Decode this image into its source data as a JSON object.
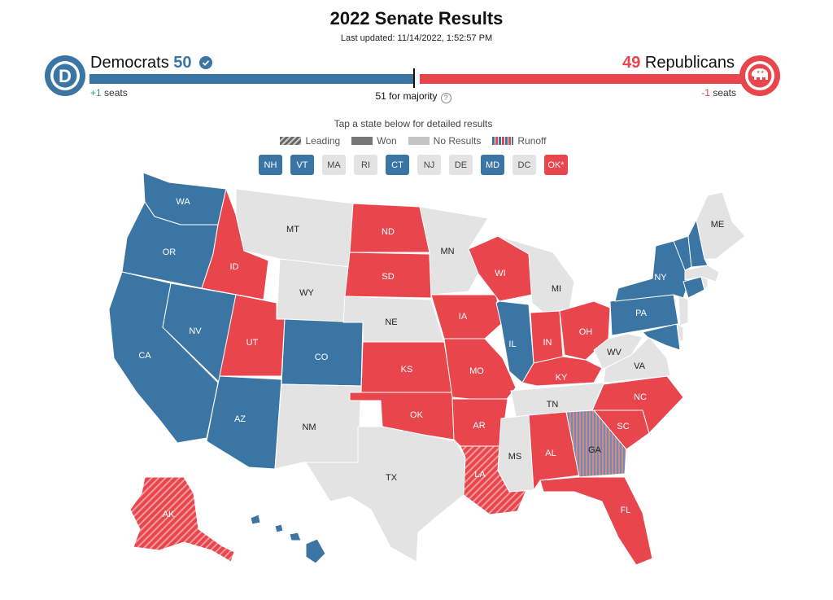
{
  "header": {
    "title": "2022 Senate Results",
    "updated": "Last updated: 11/14/2022, 1:52:57 PM"
  },
  "dem": {
    "name": "Democrats",
    "seats": "50",
    "change_delta": "+1",
    "change_unit": "seats",
    "logo_letter": "D"
  },
  "rep": {
    "name": "Republicans",
    "seats": "49",
    "change_delta": "-1",
    "change_unit": "seats"
  },
  "majority": {
    "label": "51 for majority",
    "help": "?"
  },
  "tap_hint": "Tap a state below for detailed results",
  "legend": {
    "leading": "Leading",
    "won": "Won",
    "no_results": "No Results",
    "runoff": "Runoff"
  },
  "colors": {
    "dem": "#3a75a3",
    "rep": "#e8454c",
    "rep_light": "#ec6e72",
    "none": "#e3e3e3",
    "runoff_blue": "#6c8fb0"
  },
  "chips": [
    {
      "label": "NH",
      "party": "dem"
    },
    {
      "label": "VT",
      "party": "dem"
    },
    {
      "label": "MA",
      "party": "none"
    },
    {
      "label": "RI",
      "party": "none"
    },
    {
      "label": "CT",
      "party": "dem"
    },
    {
      "label": "NJ",
      "party": "none"
    },
    {
      "label": "DE",
      "party": "none"
    },
    {
      "label": "MD",
      "party": "dem"
    },
    {
      "label": "DC",
      "party": "none"
    },
    {
      "label": "OK*",
      "party": "rep"
    }
  ],
  "states": [
    {
      "abbr": "WA",
      "party": "dem"
    },
    {
      "abbr": "OR",
      "party": "dem"
    },
    {
      "abbr": "CA",
      "party": "dem"
    },
    {
      "abbr": "NV",
      "party": "dem"
    },
    {
      "abbr": "ID",
      "party": "rep"
    },
    {
      "abbr": "MT",
      "party": "none"
    },
    {
      "abbr": "WY",
      "party": "none"
    },
    {
      "abbr": "UT",
      "party": "rep"
    },
    {
      "abbr": "AZ",
      "party": "dem"
    },
    {
      "abbr": "CO",
      "party": "dem"
    },
    {
      "abbr": "NM",
      "party": "none"
    },
    {
      "abbr": "ND",
      "party": "rep"
    },
    {
      "abbr": "SD",
      "party": "rep"
    },
    {
      "abbr": "NE",
      "party": "none"
    },
    {
      "abbr": "KS",
      "party": "rep"
    },
    {
      "abbr": "OK",
      "party": "rep"
    },
    {
      "abbr": "TX",
      "party": "none"
    },
    {
      "abbr": "MN",
      "party": "none"
    },
    {
      "abbr": "IA",
      "party": "rep"
    },
    {
      "abbr": "MO",
      "party": "rep"
    },
    {
      "abbr": "AR",
      "party": "rep"
    },
    {
      "abbr": "LA",
      "party": "rep-leading"
    },
    {
      "abbr": "WI",
      "party": "rep"
    },
    {
      "abbr": "IL",
      "party": "dem"
    },
    {
      "abbr": "MI",
      "party": "none"
    },
    {
      "abbr": "IN",
      "party": "rep"
    },
    {
      "abbr": "OH",
      "party": "rep"
    },
    {
      "abbr": "KY",
      "party": "rep"
    },
    {
      "abbr": "TN",
      "party": "none"
    },
    {
      "abbr": "MS",
      "party": "none"
    },
    {
      "abbr": "AL",
      "party": "rep"
    },
    {
      "abbr": "GA",
      "party": "runoff"
    },
    {
      "abbr": "FL",
      "party": "rep"
    },
    {
      "abbr": "SC",
      "party": "rep"
    },
    {
      "abbr": "NC",
      "party": "rep"
    },
    {
      "abbr": "VA",
      "party": "none"
    },
    {
      "abbr": "WV",
      "party": "none"
    },
    {
      "abbr": "PA",
      "party": "dem"
    },
    {
      "abbr": "NY",
      "party": "dem"
    },
    {
      "abbr": "ME",
      "party": "none"
    },
    {
      "abbr": "AK",
      "party": "rep-leading"
    },
    {
      "abbr": "HI",
      "party": "dem"
    }
  ]
}
